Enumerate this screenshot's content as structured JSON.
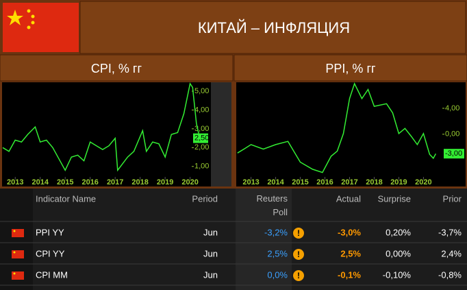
{
  "header": {
    "title": "КИТАЙ – ИНФЛЯЦИЯ"
  },
  "chart_data": [
    {
      "type": "line",
      "title": "CPI, % гг",
      "x": [
        2012.5,
        2012.75,
        2013.0,
        2013.25,
        2013.5,
        2013.8,
        2014.0,
        2014.25,
        2014.5,
        2014.75,
        2015.0,
        2015.25,
        2015.5,
        2015.75,
        2016.0,
        2016.25,
        2016.5,
        2016.75,
        2017.0,
        2017.1,
        2017.5,
        2017.75,
        2018.1,
        2018.25,
        2018.5,
        2018.75,
        2019.0,
        2019.25,
        2019.5,
        2019.75,
        2020.0,
        2020.1,
        2020.25,
        2020.4,
        2020.5
      ],
      "series": [
        {
          "name": "CPI",
          "color": "#33ee33",
          "values": [
            2.0,
            1.8,
            2.4,
            2.3,
            2.7,
            3.1,
            2.3,
            2.4,
            2.0,
            1.4,
            0.8,
            1.5,
            1.6,
            1.3,
            2.3,
            2.1,
            1.9,
            2.1,
            2.5,
            0.8,
            1.5,
            1.8,
            2.9,
            1.8,
            2.3,
            2.2,
            1.5,
            2.7,
            2.8,
            3.8,
            5.4,
            5.2,
            3.3,
            2.4,
            2.5
          ],
          "value_labels": [
            null,
            null,
            null,
            null,
            null,
            null,
            null,
            null,
            null,
            null,
            null,
            null,
            null,
            null,
            null,
            null,
            null,
            null,
            null,
            null,
            null,
            null,
            null,
            null,
            null,
            null,
            null,
            null,
            null,
            null,
            null,
            null,
            null,
            null,
            "2,50"
          ]
        }
      ],
      "xlim": [
        2012.5,
        2020.75
      ],
      "xticks": [
        2013,
        2014,
        2015,
        2016,
        2017,
        2018,
        2019,
        2020
      ],
      "ylim": [
        0.3,
        5.4
      ],
      "yticks": [
        {
          "value": 1,
          "label": "1,00"
        },
        {
          "value": 2,
          "label": "2,00"
        },
        {
          "value": 3,
          "label": "3,00"
        },
        {
          "value": 4,
          "label": "4,00"
        },
        {
          "value": 5,
          "label": "5,00"
        }
      ]
    },
    {
      "type": "line",
      "title": "PPI, % гг",
      "x": [
        2012.45,
        2012.75,
        2013.0,
        2013.5,
        2014.0,
        2014.5,
        2015.0,
        2015.5,
        2015.9,
        2016.25,
        2016.5,
        2016.75,
        2017.0,
        2017.2,
        2017.5,
        2017.75,
        2018.0,
        2018.5,
        2018.75,
        2019.0,
        2019.25,
        2019.5,
        2019.75,
        2020.0,
        2020.25,
        2020.4,
        2020.5
      ],
      "series": [
        {
          "name": "PPI",
          "color": "#33ee33",
          "values": [
            -2.9,
            -2.2,
            -1.6,
            -2.3,
            -1.6,
            -1.1,
            -4.3,
            -5.4,
            -5.9,
            -3.4,
            -2.6,
            0.1,
            5.5,
            7.8,
            5.5,
            6.9,
            4.3,
            4.7,
            3.3,
            0.1,
            0.9,
            -0.3,
            -1.6,
            0.1,
            -3.1,
            -3.7,
            -3.0
          ],
          "value_labels": [
            null,
            null,
            null,
            null,
            null,
            null,
            null,
            null,
            null,
            null,
            null,
            null,
            null,
            null,
            null,
            null,
            null,
            null,
            null,
            null,
            null,
            null,
            null,
            null,
            null,
            null,
            "-3,00"
          ]
        }
      ],
      "xlim": [
        2012.4,
        2020.6
      ],
      "xticks": [
        2013,
        2014,
        2015,
        2016,
        2017,
        2018,
        2019,
        2020
      ],
      "ylim": [
        -7,
        7.8
      ],
      "yticks": [
        {
          "value": 0,
          "label": "0,00"
        },
        {
          "value": 4,
          "label": "4,00"
        }
      ]
    }
  ],
  "table": {
    "columns": [
      "Indicator Name",
      "Period",
      "Reuters Poll",
      "Actual",
      "Surprise",
      "Prior"
    ],
    "rows": [
      [
        "PPI YY",
        "Jun",
        "-3,2%",
        "-3,0%",
        "0,20%",
        "-3,7%"
      ],
      [
        "CPI YY",
        "Jun",
        "2,5%",
        "2,5%",
        "0,00%",
        "2,4%"
      ],
      [
        "CPI MM",
        "Jun",
        "0,0%",
        "-0,1%",
        "-0,10%",
        "-0,8%"
      ]
    ]
  }
}
